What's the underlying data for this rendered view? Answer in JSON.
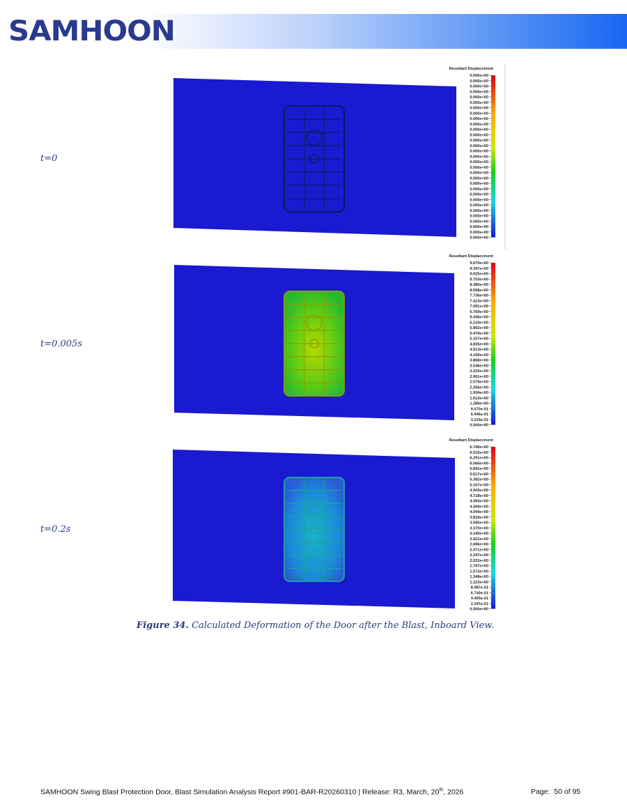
{
  "header": {
    "logo": "SAMHOON"
  },
  "panels": [
    {
      "label": "t=0",
      "legend_title": "Resultant Displacement",
      "legend_values": [
        "0.000e+00",
        "0.000e+00",
        "0.000e+00",
        "0.000e+00",
        "0.000e+00",
        "0.000e+00",
        "0.000e+00",
        "0.000e+00",
        "0.000e+00",
        "0.000e+00",
        "0.000e+00",
        "0.000e+00",
        "0.000e+00",
        "0.000e+00",
        "0.000e+00",
        "0.000e+00",
        "0.000e+00",
        "0.000e+00",
        "0.000e+00",
        "0.000e+00",
        "0.000e+00",
        "0.000e+00",
        "0.000e+00",
        "0.000e+00",
        "0.000e+00",
        "0.000e+00",
        "0.000e+00",
        "0.000e+00",
        "0.000e+00",
        "0.000e+00",
        "0.000e+00"
      ]
    },
    {
      "label": "t=0.005s",
      "legend_title": "Resultant Displacement",
      "legend_values": [
        "9.670e+00",
        "9.347e+00",
        "9.025e+00",
        "8.703e+00",
        "8.380e+00",
        "8.058e+00",
        "7.736e+00",
        "7.413e+00",
        "7.091e+00",
        "6.769e+00",
        "6.446e+00",
        "6.124e+00",
        "5.802e+00",
        "5.479e+00",
        "5.157e+00",
        "4.835e+00",
        "4.513e+00",
        "4.190e+00",
        "3.868e+00",
        "3.546e+00",
        "3.223e+00",
        "2.901e+00",
        "2.579e+00",
        "2.256e+00",
        "1.934e+00",
        "1.612e+00",
        "1.289e+00",
        "9.670e-01",
        "6.446e-01",
        "3.223e-01",
        "0.000e+00"
      ]
    },
    {
      "label": "t=0.2s",
      "legend_title": "Resultant Displacement",
      "legend_values": [
        "6.740e+00",
        "6.515e+00",
        "6.291e+00",
        "6.066e+00",
        "5.841e+00",
        "5.617e+00",
        "5.392e+00",
        "5.167e+00",
        "4.943e+00",
        "4.718e+00",
        "4.493e+00",
        "4.269e+00",
        "4.044e+00",
        "3.819e+00",
        "3.595e+00",
        "3.370e+00",
        "3.145e+00",
        "2.921e+00",
        "2.696e+00",
        "2.471e+00",
        "2.247e+00",
        "2.022e+00",
        "1.797e+00",
        "1.573e+00",
        "1.348e+00",
        "1.123e+00",
        "8.987e-01",
        "6.740e-01",
        "4.493e-01",
        "2.247e-01",
        "0.000e+00"
      ]
    }
  ],
  "caption": {
    "label": "Figure 34.",
    "text": "Calculated Deformation of the Door after the Blast, Inboard View."
  },
  "footer": {
    "report": "SAMHOON Swing Blast Protection Door, Blast Simulation Analysis Report #901-BAR-R20260310 | Release: R3, March, 20",
    "superscript": "th",
    "report_end": ", 2026",
    "page": "Page:  50 of 95"
  }
}
